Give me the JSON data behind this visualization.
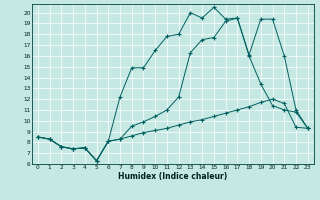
{
  "xlabel": "Humidex (Indice chaleur)",
  "bg_color": "#c5e8e2",
  "grid_color": "#ffffff",
  "line_color": "#006060",
  "xlim": [
    -0.5,
    23.5
  ],
  "ylim": [
    6,
    20.8
  ],
  "xticks": [
    0,
    1,
    2,
    3,
    4,
    5,
    6,
    7,
    8,
    9,
    10,
    11,
    12,
    13,
    14,
    15,
    16,
    17,
    18,
    19,
    20,
    21,
    22,
    23
  ],
  "yticks": [
    6,
    7,
    8,
    9,
    10,
    11,
    12,
    13,
    14,
    15,
    16,
    17,
    18,
    19,
    20
  ],
  "line1_x": [
    0,
    1,
    2,
    3,
    4,
    5,
    6,
    7,
    8,
    9,
    10,
    11,
    12,
    13,
    14,
    15,
    16,
    17,
    18,
    19,
    20,
    21,
    22,
    23
  ],
  "line1_y": [
    8.5,
    8.3,
    7.6,
    7.4,
    7.5,
    6.3,
    8.1,
    8.3,
    8.6,
    8.9,
    9.1,
    9.3,
    9.6,
    9.9,
    10.1,
    10.4,
    10.7,
    11.0,
    11.3,
    11.7,
    12.0,
    11.6,
    9.4,
    9.3
  ],
  "line2_x": [
    0,
    1,
    2,
    3,
    4,
    5,
    6,
    7,
    8,
    9,
    10,
    11,
    12,
    13,
    14,
    15,
    16,
    17,
    18,
    19,
    20,
    21,
    22,
    23
  ],
  "line2_y": [
    8.5,
    8.3,
    7.6,
    7.4,
    7.5,
    6.3,
    8.1,
    8.3,
    9.5,
    9.9,
    10.4,
    11.0,
    12.2,
    16.3,
    17.5,
    17.7,
    19.2,
    19.5,
    16.0,
    13.4,
    11.4,
    11.0,
    10.8,
    9.3
  ],
  "line3_x": [
    0,
    1,
    2,
    3,
    4,
    5,
    6,
    7,
    8,
    9,
    10,
    11,
    12,
    13,
    14,
    15,
    16,
    17,
    18,
    19,
    20,
    21,
    22,
    23
  ],
  "line3_y": [
    8.5,
    8.3,
    7.6,
    7.4,
    7.5,
    6.3,
    8.1,
    12.2,
    14.9,
    14.9,
    16.5,
    17.8,
    18.0,
    20.0,
    19.5,
    20.5,
    19.4,
    19.5,
    16.1,
    19.4,
    19.4,
    16.0,
    11.0,
    9.3
  ]
}
